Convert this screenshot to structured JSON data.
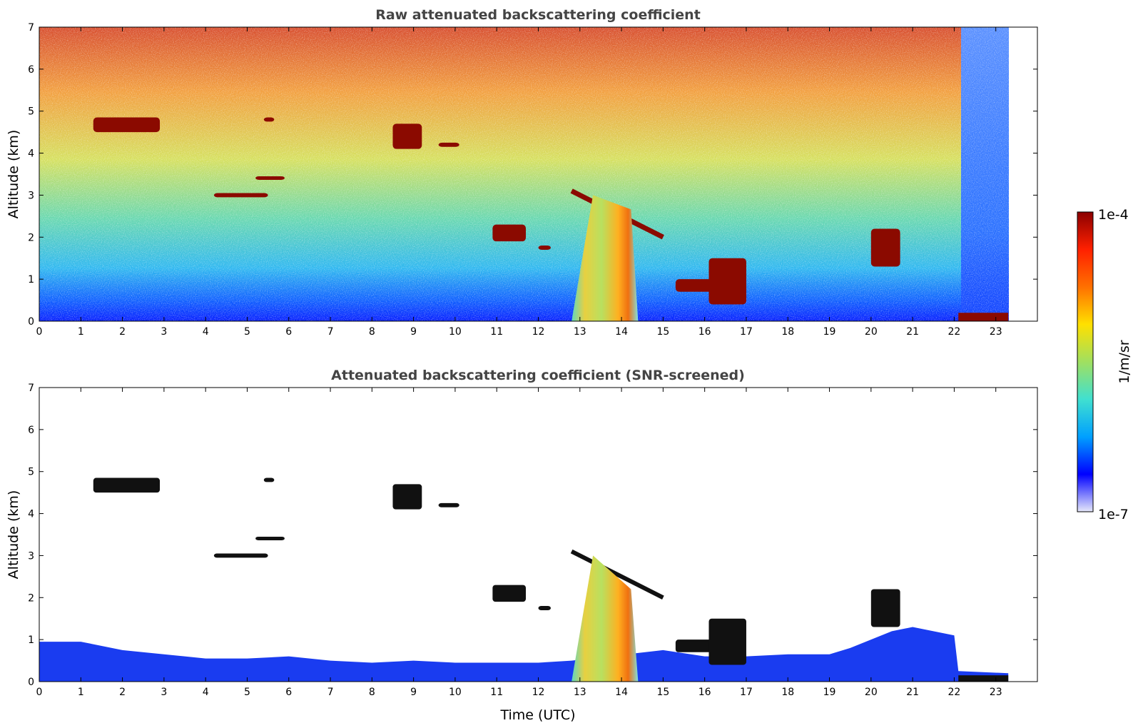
{
  "chart_data": [
    {
      "type": "heatmap",
      "title": "Raw attenuated backscattering coefficient",
      "xlabel": "",
      "ylabel": "Altitude (km)",
      "xlim": [
        0,
        24
      ],
      "ylim": [
        0,
        7
      ],
      "x_ticks": [
        "0",
        "1",
        "2",
        "3",
        "4",
        "5",
        "6",
        "7",
        "8",
        "9",
        "10",
        "11",
        "12",
        "13",
        "14",
        "15",
        "16",
        "17",
        "18",
        "19",
        "20",
        "21",
        "22",
        "23"
      ],
      "y_ticks": [
        "0",
        "1",
        "2",
        "3",
        "4",
        "5",
        "6",
        "7"
      ],
      "data_end_hour": 23.3,
      "low_signal_period": [
        22.1,
        23.3
      ],
      "features": [
        {
          "kind": "cloud",
          "t": [
            1.3,
            2.9
          ],
          "alt": [
            4.5,
            4.85
          ]
        },
        {
          "kind": "cloud",
          "t": [
            4.2,
            5.5
          ],
          "alt": [
            2.95,
            3.05
          ]
        },
        {
          "kind": "cloud",
          "t": [
            5.4,
            5.65
          ],
          "alt": [
            4.75,
            4.85
          ]
        },
        {
          "kind": "cloud",
          "t": [
            5.2,
            5.9
          ],
          "alt": [
            3.4,
            3.45
          ]
        },
        {
          "kind": "cloud",
          "t": [
            8.5,
            9.2
          ],
          "alt": [
            4.1,
            4.7
          ]
        },
        {
          "kind": "cloud",
          "t": [
            9.6,
            10.1
          ],
          "alt": [
            4.15,
            4.25
          ]
        },
        {
          "kind": "cloud",
          "t": [
            10.9,
            11.7
          ],
          "alt": [
            1.9,
            2.3
          ]
        },
        {
          "kind": "cloud",
          "t": [
            12.0,
            12.3
          ],
          "alt": [
            1.7,
            1.8
          ]
        },
        {
          "kind": "cloud_layer",
          "t": [
            12.8,
            15.0
          ],
          "alt": [
            3.1,
            2.0
          ]
        },
        {
          "kind": "precipitation",
          "t": [
            12.8,
            14.4
          ],
          "alt": [
            0,
            3.0
          ]
        },
        {
          "kind": "cloud",
          "t": [
            15.3,
            16.4
          ],
          "alt": [
            0.7,
            1.0
          ]
        },
        {
          "kind": "cloud",
          "t": [
            16.1,
            17.0
          ],
          "alt": [
            0.4,
            1.5
          ]
        },
        {
          "kind": "cloud",
          "t": [
            20.0,
            20.7
          ],
          "alt": [
            1.3,
            2.2
          ]
        }
      ]
    },
    {
      "type": "heatmap",
      "title": "Attenuated backscattering coefficient (SNR-screened)",
      "xlabel": "Time (UTC)",
      "ylabel": "Altitude (km)",
      "xlim": [
        0,
        24
      ],
      "ylim": [
        0,
        7
      ],
      "x_ticks": [
        "0",
        "1",
        "2",
        "3",
        "4",
        "5",
        "6",
        "7",
        "8",
        "9",
        "10",
        "11",
        "12",
        "13",
        "14",
        "15",
        "16",
        "17",
        "18",
        "19",
        "20",
        "21",
        "22",
        "23"
      ],
      "y_ticks": [
        "0",
        "1",
        "2",
        "3",
        "4",
        "5",
        "6",
        "7"
      ],
      "boundary_layer_top_km": [
        [
          0,
          0.95
        ],
        [
          1,
          0.95
        ],
        [
          2,
          0.75
        ],
        [
          3,
          0.65
        ],
        [
          4,
          0.55
        ],
        [
          5,
          0.55
        ],
        [
          6,
          0.6
        ],
        [
          7,
          0.5
        ],
        [
          8,
          0.45
        ],
        [
          9,
          0.5
        ],
        [
          10,
          0.45
        ],
        [
          11,
          0.45
        ],
        [
          12,
          0.45
        ],
        [
          12.8,
          0.5
        ],
        [
          15,
          0.75
        ],
        [
          16,
          0.6
        ],
        [
          17,
          0.6
        ],
        [
          18,
          0.65
        ],
        [
          19,
          0.65
        ],
        [
          19.5,
          0.8
        ],
        [
          20,
          1.0
        ],
        [
          20.5,
          1.2
        ],
        [
          21,
          1.3
        ],
        [
          22,
          1.1
        ],
        [
          22.1,
          0.25
        ],
        [
          23.3,
          0.2
        ]
      ]
    }
  ],
  "colorbar": {
    "label": "1/m/sr",
    "max_label": "1e-4",
    "min_label": "1e-7",
    "scale": "log",
    "colors": [
      "#e6e8fa",
      "#0000ff",
      "#00a0ff",
      "#40e0d0",
      "#a0e060",
      "#ffe000",
      "#ff7000",
      "#ff2000",
      "#8b0000"
    ]
  },
  "colors": {
    "cloud_core": "#111111",
    "cloud": "#8b0a00",
    "boundary_layer": "#1a3cf0"
  }
}
